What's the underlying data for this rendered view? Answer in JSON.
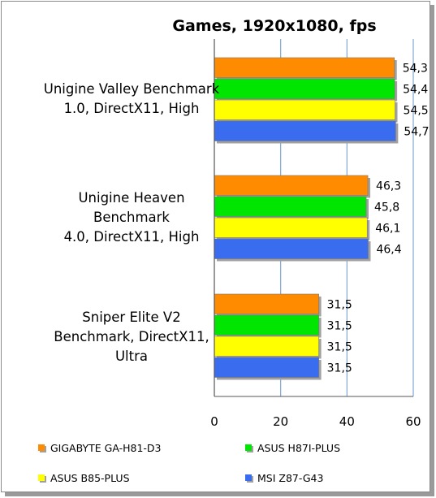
{
  "chart_data": {
    "type": "bar",
    "orientation": "horizontal",
    "title": "Games, 1920x1080, fps",
    "categories": [
      [
        "Unigine Valley Benchmark",
        "1.0, DirectX11, High"
      ],
      [
        "Unigine Heaven",
        "Benchmark",
        "4.0, DirectX11, High"
      ],
      [
        "Sniper Elite V2",
        "Benchmark, DirectX11,",
        "Ultra"
      ]
    ],
    "series": [
      {
        "name": "GIGABYTE GA-H81-D3",
        "color": "#ff8c00",
        "values": [
          54.3,
          46.3,
          31.5
        ],
        "labels": [
          "54,3",
          "46,3",
          "31,5"
        ]
      },
      {
        "name": "ASUS H87I-PLUS",
        "color": "#00e600",
        "values": [
          54.4,
          45.8,
          31.5
        ],
        "labels": [
          "54,4",
          "45,8",
          "31,5"
        ]
      },
      {
        "name": "ASUS B85-PLUS",
        "color": "#ffff00",
        "values": [
          54.5,
          46.1,
          31.5
        ],
        "labels": [
          "54,5",
          "46,1",
          "31,5"
        ]
      },
      {
        "name": "MSI Z87-G43",
        "color": "#3a6cf0",
        "values": [
          54.7,
          46.4,
          31.5
        ],
        "labels": [
          "54,7",
          "46,4",
          "31,5"
        ]
      }
    ],
    "xlim": [
      0,
      60
    ],
    "xticks": [
      "0",
      "20",
      "40",
      "60"
    ],
    "grid": true,
    "legend_position": "bottom"
  }
}
